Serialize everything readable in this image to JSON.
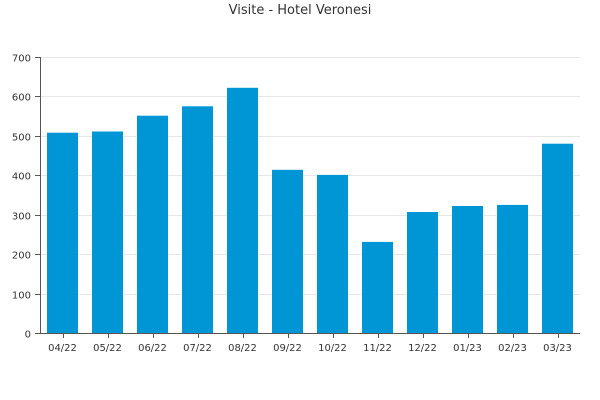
{
  "chart_data": {
    "type": "bar",
    "title": "Visite - Hotel Veronesi",
    "xlabel": "",
    "ylabel": "",
    "categories": [
      "04/22",
      "05/22",
      "06/22",
      "07/22",
      "08/22",
      "09/22",
      "10/22",
      "11/22",
      "12/22",
      "01/23",
      "02/23",
      "03/23"
    ],
    "values": [
      508,
      511,
      551,
      575,
      622,
      414,
      401,
      231,
      307,
      322,
      325,
      480
    ],
    "ylim": [
      0,
      700
    ],
    "yticks": [
      0,
      100,
      200,
      300,
      400,
      500,
      600,
      700
    ],
    "grid": true,
    "legend": "none",
    "colors": {
      "bar": "#0096d6",
      "grid": "#e6e6e6",
      "axis": "#555555",
      "text": "#333333"
    }
  }
}
